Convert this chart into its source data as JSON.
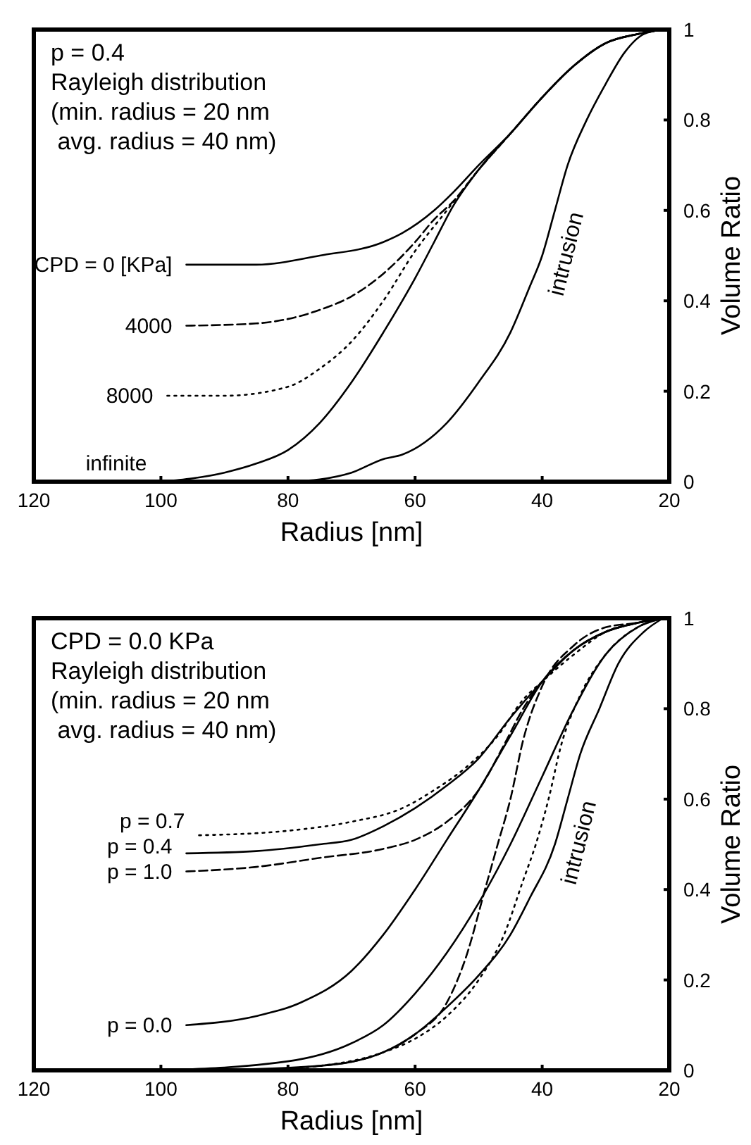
{
  "chart_data": [
    {
      "type": "line",
      "xlabel": "Radius [nm]",
      "ylabel": "Volume Ratio",
      "xlim": [
        120,
        20
      ],
      "xticks": [
        120,
        100,
        80,
        60,
        40,
        20
      ],
      "ylim": [
        0,
        1
      ],
      "yticks": [
        0,
        0.2,
        0.4,
        0.6,
        0.8,
        1
      ],
      "annotations": [
        "p = 0.4",
        "Rayleigh distribution",
        "(min. radius = 20 nm",
        " avg. radius = 40 nm)"
      ],
      "series": [
        {
          "name": "CPD = 0 [KPa]",
          "color": "#000000",
          "line_style": "solid",
          "x": [
            96,
            85,
            75,
            65,
            62,
            57,
            54,
            50,
            45,
            40,
            35,
            30,
            25,
            21
          ],
          "values": [
            0.48,
            0.48,
            0.5,
            0.53,
            0.55,
            0.6,
            0.64,
            0.7,
            0.77,
            0.85,
            0.92,
            0.97,
            0.99,
            1
          ]
        },
        {
          "name": "4000",
          "color": "#000000",
          "line_style": "dashed",
          "x": [
            96,
            85,
            75,
            70,
            65,
            60,
            57,
            54,
            50,
            45,
            40,
            35,
            30,
            25,
            21
          ],
          "values": [
            0.345,
            0.35,
            0.38,
            0.41,
            0.46,
            0.53,
            0.58,
            0.62,
            0.69,
            0.77,
            0.85,
            0.92,
            0.97,
            0.99,
            1
          ]
        },
        {
          "name": "8000",
          "color": "#000000",
          "line_style": "dotted",
          "x": [
            99,
            90,
            80,
            75,
            70,
            65,
            60,
            55,
            50,
            45,
            40,
            35,
            30,
            25,
            21
          ],
          "values": [
            0.19,
            0.19,
            0.21,
            0.25,
            0.31,
            0.4,
            0.51,
            0.6,
            0.69,
            0.77,
            0.85,
            0.92,
            0.97,
            0.99,
            1
          ]
        },
        {
          "name": "infinite",
          "color": "#000000",
          "line_style": "solid",
          "x": [
            100,
            90,
            85,
            80,
            75,
            70,
            65,
            60,
            57,
            54,
            50,
            45,
            40,
            35,
            30,
            25,
            21
          ],
          "values": [
            0,
            0.02,
            0.04,
            0.07,
            0.13,
            0.22,
            0.33,
            0.45,
            0.53,
            0.61,
            0.69,
            0.77,
            0.85,
            0.92,
            0.97,
            0.99,
            1
          ]
        },
        {
          "name": "intrusion",
          "color": "#000000",
          "line_style": "solid",
          "x": [
            80,
            75,
            70,
            65,
            62,
            55,
            50,
            45,
            42,
            40,
            38,
            36,
            33,
            30,
            27,
            24,
            21
          ],
          "values": [
            0,
            0.005,
            0.02,
            0.05,
            0.06,
            0.13,
            0.22,
            0.33,
            0.43,
            0.5,
            0.6,
            0.7,
            0.8,
            0.88,
            0.95,
            0.99,
            1
          ]
        }
      ]
    },
    {
      "type": "line",
      "xlabel": "Radius [nm]",
      "ylabel": "Volume Ratio",
      "xlim": [
        120,
        20
      ],
      "xticks": [
        120,
        100,
        80,
        60,
        40,
        20
      ],
      "ylim": [
        0,
        1
      ],
      "yticks": [
        0,
        0.2,
        0.4,
        0.6,
        0.8,
        1
      ],
      "annotations": [
        "CPD = 0.0 KPa",
        "Rayleigh distribution",
        "(min. radius = 20 nm",
        " avg. radius = 40 nm)"
      ],
      "series": [
        {
          "name": "p = 0.7",
          "color": "#000000",
          "line_style": "dotted",
          "x": [
            94,
            80,
            70,
            62,
            57,
            52,
            47,
            43,
            40,
            35,
            30,
            25,
            21
          ],
          "values": [
            0.52,
            0.53,
            0.55,
            0.58,
            0.62,
            0.67,
            0.74,
            0.82,
            0.86,
            0.92,
            0.97,
            0.99,
            1
          ]
        },
        {
          "name": "p = 0.4",
          "color": "#000000",
          "line_style": "solid",
          "x": [
            96,
            85,
            75,
            70,
            65,
            60,
            55,
            50,
            45,
            40,
            35,
            30,
            25,
            21
          ],
          "values": [
            0.48,
            0.485,
            0.5,
            0.51,
            0.54,
            0.58,
            0.63,
            0.69,
            0.78,
            0.86,
            0.93,
            0.97,
            0.99,
            1
          ]
        },
        {
          "name": "p = 1.0",
          "color": "#000000",
          "line_style": "dashed",
          "x": [
            96,
            85,
            75,
            65,
            60,
            55,
            50,
            46,
            43,
            40,
            35,
            30,
            25,
            21
          ],
          "values": [
            0.44,
            0.45,
            0.47,
            0.49,
            0.51,
            0.55,
            0.62,
            0.72,
            0.8,
            0.86,
            0.93,
            0.97,
            0.99,
            1
          ]
        },
        {
          "name": "p = 0.0",
          "color": "#000000",
          "line_style": "solid",
          "x": [
            96,
            85,
            78,
            70,
            65,
            60,
            55,
            50,
            45,
            40,
            35,
            30,
            25,
            21
          ],
          "values": [
            0.1,
            0.12,
            0.15,
            0.22,
            0.3,
            0.4,
            0.51,
            0.62,
            0.74,
            0.86,
            0.93,
            0.97,
            0.99,
            1
          ]
        },
        {
          "color": "#000000",
          "line_style": "solid",
          "x": [
            100,
            80,
            70,
            65,
            60,
            55,
            50,
            45,
            40,
            35,
            30,
            25,
            21
          ],
          "values": [
            0,
            0.02,
            0.06,
            0.1,
            0.17,
            0.26,
            0.37,
            0.5,
            0.65,
            0.8,
            0.92,
            0.98,
            1
          ]
        },
        {
          "color": "#000000",
          "line_style": "dashed",
          "x": [
            90,
            75,
            65,
            60,
            55,
            52,
            49,
            47,
            45,
            43,
            40,
            35,
            30,
            25,
            21
          ],
          "values": [
            0,
            0.01,
            0.04,
            0.08,
            0.15,
            0.25,
            0.4,
            0.5,
            0.6,
            0.73,
            0.85,
            0.94,
            0.98,
            0.99,
            1
          ]
        },
        {
          "color": "#000000",
          "line_style": "dotted",
          "x": [
            87,
            75,
            65,
            60,
            55,
            50,
            46,
            43,
            41,
            39,
            37,
            34,
            30,
            25,
            21
          ],
          "values": [
            0,
            0.01,
            0.04,
            0.07,
            0.12,
            0.2,
            0.3,
            0.42,
            0.5,
            0.6,
            0.72,
            0.83,
            0.92,
            0.98,
            1
          ]
        },
        {
          "name": "intrusion",
          "color": "#000000",
          "line_style": "solid",
          "x": [
            93,
            75,
            65,
            60,
            55,
            50,
            45,
            42,
            38,
            36,
            34,
            31,
            28,
            24,
            21
          ],
          "values": [
            0,
            0.01,
            0.04,
            0.08,
            0.14,
            0.21,
            0.3,
            0.38,
            0.5,
            0.6,
            0.7,
            0.8,
            0.9,
            0.97,
            1
          ]
        }
      ]
    }
  ]
}
